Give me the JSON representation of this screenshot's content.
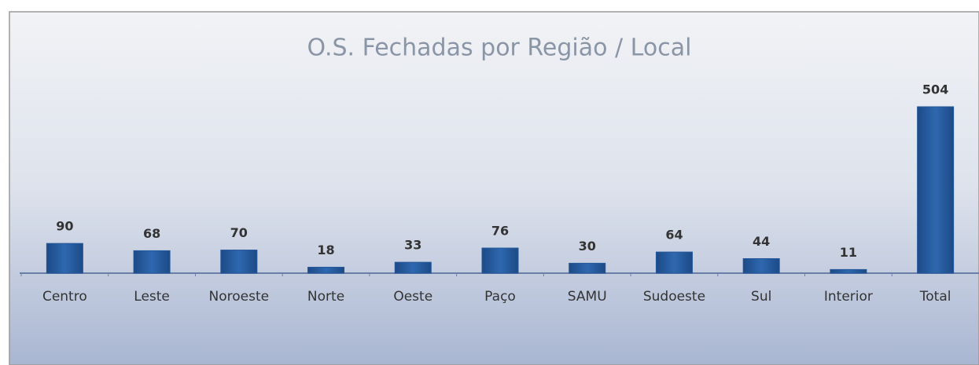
{
  "chart_data": {
    "type": "bar",
    "title": "O.S. Fechadas por Região / Local",
    "categories": [
      "Centro",
      "Leste",
      "Noroeste",
      "Norte",
      "Oeste",
      "Paço",
      "SAMU",
      "Sudoeste",
      "Sul",
      "Interior",
      "Total"
    ],
    "values": [
      90,
      68,
      70,
      18,
      33,
      76,
      30,
      64,
      44,
      11,
      504
    ],
    "color": "#24579a"
  }
}
